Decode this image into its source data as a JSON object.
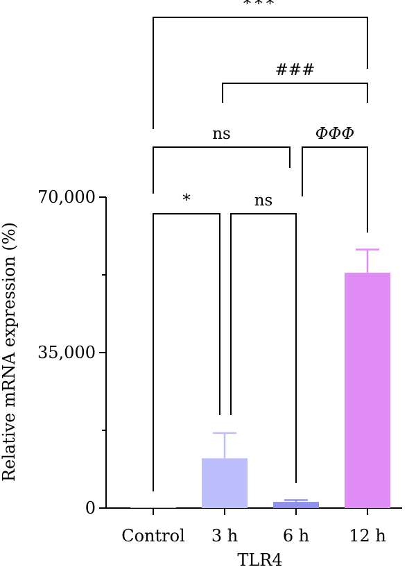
{
  "chart_data": {
    "type": "bar",
    "xlabel": "TLR4",
    "ylabel": "Relative mRNA expression (%)",
    "ylim": [
      0,
      70000
    ],
    "yticks": [
      {
        "value": 0,
        "label": "0"
      },
      {
        "value": 35000,
        "label": "35,000"
      },
      {
        "value": 70000,
        "label": "70,000"
      }
    ],
    "minor_yticks": [
      17500,
      52500
    ],
    "categories": [
      "Control",
      "3 h",
      "6 h",
      "12 h"
    ],
    "values": [
      100,
      11200,
      1400,
      53000
    ],
    "errors": [
      0,
      5700,
      400,
      5200
    ],
    "colors": [
      "#ffffff",
      "#bcbefc",
      "#8f8ff1",
      "#df8cf7"
    ],
    "grid": false,
    "legend": "none",
    "comparisons": [
      {
        "from": 0,
        "to": 1,
        "label": "*",
        "italic": false
      },
      {
        "from": 1,
        "to": 2,
        "label": "ns",
        "italic": false
      },
      {
        "from": 0,
        "to": 2,
        "label": "ns",
        "italic": false
      },
      {
        "from": 2,
        "to": 3,
        "label": "ΦΦΦ",
        "italic": true
      },
      {
        "from": 1,
        "to": 3,
        "label": "###",
        "italic": false
      },
      {
        "from": 0,
        "to": 3,
        "label": "***",
        "italic": false
      }
    ]
  }
}
